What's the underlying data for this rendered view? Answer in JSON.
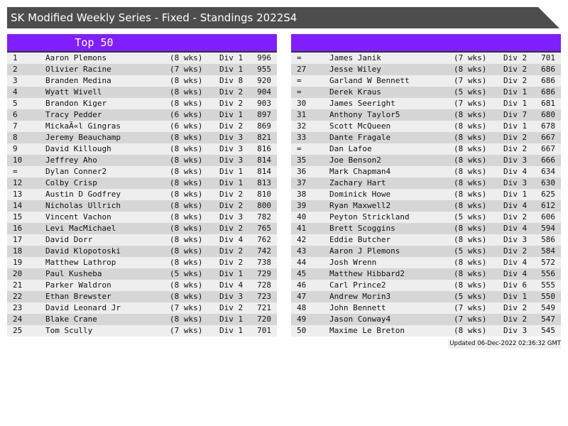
{
  "title": "SK Modified Weekly Series - Fixed - Standings 2022S4",
  "left_header": "Top 50",
  "right_header": "",
  "colors": {
    "title_bg": "#4d4d4d",
    "header_bg": "#7f1fff",
    "row_light": "#eeeeee",
    "row_dark": "#d6d6d6"
  },
  "left_rows": [
    [
      "1",
      "Aaron Plemons",
      "(8 wks)",
      "Div 1",
      "996"
    ],
    [
      "2",
      "Olivier Racine",
      "(7 wks)",
      "Div 1",
      "955"
    ],
    [
      "3",
      "Branden Medina",
      "(8 wks)",
      "Div 8",
      "920"
    ],
    [
      "4",
      "Wyatt Wivell",
      "(8 wks)",
      "Div 2",
      "904"
    ],
    [
      "5",
      "Brandon Kiger",
      "(8 wks)",
      "Div 2",
      "903"
    ],
    [
      "6",
      "Tracy Pedder",
      "(6 wks)",
      "Div 1",
      "897"
    ],
    [
      "7",
      "MickaÃ«l Gingras",
      "(6 wks)",
      "Div 2",
      "869"
    ],
    [
      "8",
      "Jeremy Beauchamp",
      "(8 wks)",
      "Div 3",
      "821"
    ],
    [
      "9",
      "David Killough",
      "(8 wks)",
      "Div 3",
      "816"
    ],
    [
      "10",
      "Jeffrey Aho",
      "(8 wks)",
      "Div 3",
      "814"
    ],
    [
      "=",
      "Dylan Conner2",
      "(8 wks)",
      "Div 1",
      "814"
    ],
    [
      "12",
      "Colby Crisp",
      "(8 wks)",
      "Div 1",
      "813"
    ],
    [
      "13",
      "Austin D Godfrey",
      "(8 wks)",
      "Div 2",
      "810"
    ],
    [
      "14",
      "Nicholas Ullrich",
      "(8 wks)",
      "Div 2",
      "800"
    ],
    [
      "15",
      "Vincent Vachon",
      "(8 wks)",
      "Div 3",
      "782"
    ],
    [
      "16",
      "Levi MacMichael",
      "(8 wks)",
      "Div 2",
      "765"
    ],
    [
      "17",
      "David Dorr",
      "(8 wks)",
      "Div 4",
      "762"
    ],
    [
      "18",
      "David Klopotoski",
      "(8 wks)",
      "Div 2",
      "742"
    ],
    [
      "19",
      "Matthew Lathrop",
      "(8 wks)",
      "Div 2",
      "738"
    ],
    [
      "20",
      "Paul Kusheba",
      "(5 wks)",
      "Div 1",
      "729"
    ],
    [
      "21",
      "Parker Waldron",
      "(8 wks)",
      "Div 4",
      "728"
    ],
    [
      "22",
      "Ethan Brewster",
      "(8 wks)",
      "Div 3",
      "723"
    ],
    [
      "23",
      "David Leonard Jr",
      "(7 wks)",
      "Div 2",
      "721"
    ],
    [
      "24",
      "Blake Crane",
      "(8 wks)",
      "Div 1",
      "720"
    ],
    [
      "25",
      "Tom Scully",
      "(7 wks)",
      "Div 1",
      "701"
    ]
  ],
  "right_rows": [
    [
      "=",
      "James Janik",
      "(7 wks)",
      "Div 2",
      "701"
    ],
    [
      "27",
      "Jesse Wiley",
      "(8 wks)",
      "Div 2",
      "686"
    ],
    [
      "=",
      "Garland W Bennett",
      "(7 wks)",
      "Div 2",
      "686"
    ],
    [
      "=",
      "Derek Kraus",
      "(5 wks)",
      "Div 1",
      "686"
    ],
    [
      "30",
      "James Seeright",
      "(7 wks)",
      "Div 1",
      "681"
    ],
    [
      "31",
      "Anthony Taylor5",
      "(8 wks)",
      "Div 7",
      "680"
    ],
    [
      "32",
      "Scott McQueen",
      "(8 wks)",
      "Div 1",
      "678"
    ],
    [
      "33",
      "Dante Fragale",
      "(8 wks)",
      "Div 2",
      "667"
    ],
    [
      "=",
      "Dan Lafoe",
      "(8 wks)",
      "Div 2",
      "667"
    ],
    [
      "35",
      "Joe Benson2",
      "(8 wks)",
      "Div 3",
      "666"
    ],
    [
      "36",
      "Mark Chapman4",
      "(8 wks)",
      "Div 4",
      "634"
    ],
    [
      "37",
      "Zachary Hart",
      "(8 wks)",
      "Div 3",
      "630"
    ],
    [
      "38",
      "Dominick Howe",
      "(8 wks)",
      "Div 1",
      "625"
    ],
    [
      "39",
      "Ryan Maxwell2",
      "(8 wks)",
      "Div 4",
      "612"
    ],
    [
      "40",
      "Peyton Strickland",
      "(5 wks)",
      "Div 2",
      "606"
    ],
    [
      "41",
      "Brett Scoggins",
      "(8 wks)",
      "Div 4",
      "594"
    ],
    [
      "42",
      "Eddie Butcher",
      "(8 wks)",
      "Div 3",
      "586"
    ],
    [
      "43",
      "Aaron J Plemons",
      "(5 wks)",
      "Div 2",
      "584"
    ],
    [
      "44",
      "Josh Wrenn",
      "(8 wks)",
      "Div 4",
      "572"
    ],
    [
      "45",
      "Matthew Hibbard2",
      "(8 wks)",
      "Div 4",
      "556"
    ],
    [
      "46",
      "Carl Prince2",
      "(8 wks)",
      "Div 6",
      "555"
    ],
    [
      "47",
      "Andrew Morin3",
      "(5 wks)",
      "Div 1",
      "550"
    ],
    [
      "48",
      "John Bennett",
      "(7 wks)",
      "Div 2",
      "549"
    ],
    [
      "49",
      "Jason Conway4",
      "(7 wks)",
      "Div 2",
      "547"
    ],
    [
      "50",
      "Maxime Le Breton",
      "(8 wks)",
      "Div 3",
      "545"
    ]
  ],
  "updated": "Updated 06-Dec-2022 02:36:32 GMT"
}
